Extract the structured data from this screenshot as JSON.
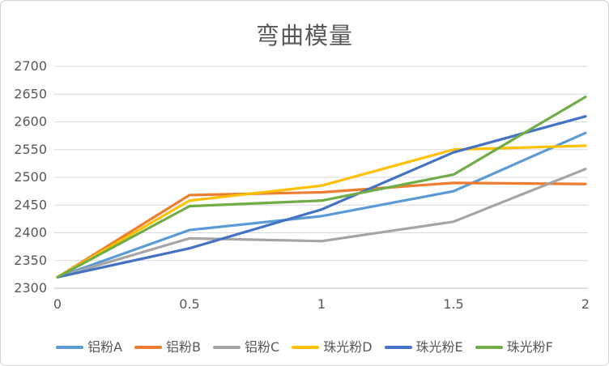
{
  "chart_data": {
    "type": "line",
    "title": "弯曲模量",
    "x": [
      0,
      0.5,
      1,
      1.5,
      2
    ],
    "x_tick_labels": [
      "0",
      "0.5",
      "1",
      "1.5",
      "2"
    ],
    "y_ticks": [
      2300,
      2350,
      2400,
      2450,
      2500,
      2550,
      2600,
      2650,
      2700
    ],
    "xlim": [
      0,
      2
    ],
    "ylim": [
      2300,
      2700
    ],
    "grid": true,
    "legend_position": "bottom",
    "series": [
      {
        "name": "铝粉A",
        "color": "#5B9BD5",
        "values": [
          2320,
          2405,
          2430,
          2475,
          2580
        ]
      },
      {
        "name": "铝粉B",
        "color": "#ED7D31",
        "values": [
          2320,
          2468,
          2473,
          2490,
          2488
        ]
      },
      {
        "name": "铝粉C",
        "color": "#A5A5A5",
        "values": [
          2320,
          2390,
          2385,
          2420,
          2515
        ]
      },
      {
        "name": "珠光粉D",
        "color": "#FFC000",
        "values": [
          2320,
          2458,
          2485,
          2550,
          2557
        ]
      },
      {
        "name": "珠光粉E",
        "color": "#4472C4",
        "values": [
          2320,
          2372,
          2442,
          2545,
          2610
        ]
      },
      {
        "name": "珠光粉F",
        "color": "#70AD47",
        "values": [
          2320,
          2448,
          2458,
          2505,
          2645
        ]
      }
    ]
  },
  "styles": {
    "title_color": "#595959",
    "axis_label_color": "#595959",
    "gridline_color": "#D9D9D9",
    "axis_line_color": "#BFBFBF",
    "background": "#FFFFFF"
  }
}
